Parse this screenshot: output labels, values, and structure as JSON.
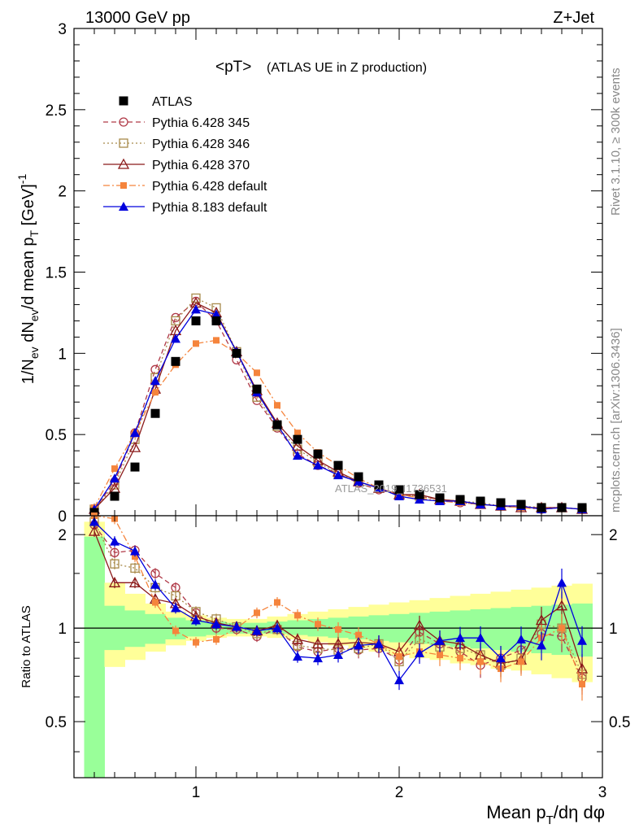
{
  "header": {
    "left": "13000 GeV pp",
    "right": "Z+Jet"
  },
  "side_labels": {
    "upper": "Rivet 3.1.10, ≥ 300k events",
    "lower": "mcplots.cern.ch [arXiv:1306.3436]"
  },
  "watermark": "ATLAS_2019_I1736531",
  "colors": {
    "ATLAS": "#000000",
    "Pythia 6.428 345": "#b03a48",
    "Pythia 6.428 346": "#a88a4a",
    "Pythia 6.428 370": "#8b1a1a",
    "Pythia 6.428 default": "#f5843c",
    "Pythia 8.183 default": "#0000dd",
    "band_inner": "#99ff99",
    "band_outer": "#ffff99"
  },
  "chart_data": [
    {
      "type": "line",
      "panel": "main",
      "title": "<pT>",
      "subtitle": "(ATLAS UE in Z production)",
      "ylabel": "1/N_ev dN_ev/d mean p_T [GeV]^-1",
      "xlabel": "",
      "xlim": [
        0.4,
        3.0
      ],
      "ylim": [
        0,
        3
      ],
      "yticks": [
        0,
        0.5,
        1,
        1.5,
        2,
        2.5,
        3
      ],
      "ytick_labels": [
        "0",
        "0.5",
        "1",
        "1.5",
        "2",
        "2.5",
        "3"
      ],
      "x": [
        0.5,
        0.6,
        0.7,
        0.8,
        0.9,
        1.0,
        1.1,
        1.2,
        1.3,
        1.4,
        1.5,
        1.6,
        1.7,
        1.8,
        1.9,
        2.0,
        2.1,
        2.2,
        2.3,
        2.4,
        2.5,
        2.6,
        2.7,
        2.8,
        2.9
      ],
      "series": [
        {
          "name": "ATLAS",
          "marker": "square-filled",
          "line": "none",
          "values": [
            0.02,
            0.12,
            0.3,
            0.63,
            0.95,
            1.2,
            1.2,
            1.0,
            0.78,
            0.56,
            0.47,
            0.38,
            0.31,
            0.24,
            0.19,
            0.16,
            0.13,
            0.11,
            0.1,
            0.09,
            0.08,
            0.07,
            0.05,
            0.05,
            0.05
          ]
        },
        {
          "name": "Pythia 6.428 345",
          "marker": "circle-open",
          "line": "dashed",
          "values": [
            0.04,
            0.21,
            0.51,
            0.9,
            1.22,
            1.32,
            1.2,
            0.96,
            0.71,
            0.54,
            0.38,
            0.31,
            0.26,
            0.2,
            0.16,
            0.13,
            0.12,
            0.1,
            0.08,
            0.07,
            0.06,
            0.06,
            0.04,
            0.05,
            0.04
          ]
        },
        {
          "name": "Pythia 6.428 346",
          "marker": "square-open",
          "line": "dotted",
          "values": [
            0.04,
            0.19,
            0.47,
            0.85,
            1.2,
            1.34,
            1.28,
            1.01,
            0.73,
            0.55,
            0.41,
            0.33,
            0.26,
            0.21,
            0.17,
            0.13,
            0.12,
            0.1,
            0.09,
            0.08,
            0.06,
            0.06,
            0.05,
            0.05,
            0.04
          ]
        },
        {
          "name": "Pythia 6.428 370",
          "marker": "triangle-open",
          "line": "solid",
          "values": [
            0.04,
            0.17,
            0.42,
            0.78,
            1.14,
            1.31,
            1.25,
            1.01,
            0.77,
            0.57,
            0.43,
            0.34,
            0.27,
            0.21,
            0.17,
            0.13,
            0.13,
            0.1,
            0.09,
            0.07,
            0.06,
            0.05,
            0.05,
            0.05,
            0.04
          ]
        },
        {
          "name": "Pythia 6.428 default",
          "marker": "square-filled-small",
          "line": "dashdot",
          "values": [
            0.05,
            0.29,
            0.51,
            0.76,
            0.93,
            1.06,
            1.08,
            1.0,
            0.88,
            0.68,
            0.51,
            0.39,
            0.31,
            0.23,
            0.17,
            0.13,
            0.11,
            0.09,
            0.08,
            0.07,
            0.06,
            0.05,
            0.04,
            0.05,
            0.04
          ]
        },
        {
          "name": "Pythia 8.183 default",
          "marker": "triangle-filled",
          "line": "solid",
          "values": [
            0.04,
            0.23,
            0.51,
            0.83,
            1.09,
            1.27,
            1.24,
            1.01,
            0.76,
            0.56,
            0.37,
            0.31,
            0.25,
            0.21,
            0.17,
            0.12,
            0.1,
            0.09,
            0.09,
            0.07,
            0.06,
            0.06,
            0.04,
            0.05,
            0.04
          ]
        }
      ]
    },
    {
      "type": "line",
      "panel": "ratio",
      "ylabel": "Ratio to ATLAS",
      "xlabel": "Mean p_T/dη dφ",
      "xlim": [
        0.4,
        3.0
      ],
      "ylim": [
        0.33,
        2.3
      ],
      "yticks": [
        0.5,
        1,
        2
      ],
      "ytick_labels": [
        "0.5",
        "1",
        "2"
      ],
      "xticks": [
        1,
        2,
        3
      ],
      "xtick_labels": [
        "1",
        "2",
        "3"
      ],
      "x": [
        0.5,
        0.6,
        0.7,
        0.8,
        0.9,
        1.0,
        1.1,
        1.2,
        1.3,
        1.4,
        1.5,
        1.6,
        1.7,
        1.8,
        1.9,
        2.0,
        2.1,
        2.2,
        2.3,
        2.4,
        2.5,
        2.6,
        2.7,
        2.8,
        2.9
      ],
      "reference": 1,
      "band_inner": {
        "low": [
          0.33,
          0.85,
          0.87,
          0.89,
          0.92,
          0.94,
          0.95,
          0.96,
          0.96,
          0.96,
          0.95,
          0.94,
          0.93,
          0.92,
          0.91,
          0.9,
          0.89,
          0.88,
          0.87,
          0.86,
          0.85,
          0.84,
          0.83,
          0.82,
          0.81
        ],
        "high": [
          1.97,
          1.18,
          1.14,
          1.11,
          1.08,
          1.06,
          1.05,
          1.04,
          1.04,
          1.05,
          1.06,
          1.07,
          1.08,
          1.09,
          1.1,
          1.11,
          1.12,
          1.13,
          1.14,
          1.15,
          1.16,
          1.17,
          1.18,
          1.19,
          1.2
        ]
      },
      "band_outer": {
        "low": [
          0.33,
          0.75,
          0.79,
          0.84,
          0.88,
          0.91,
          0.93,
          0.94,
          0.94,
          0.93,
          0.92,
          0.9,
          0.88,
          0.86,
          0.84,
          0.82,
          0.8,
          0.79,
          0.77,
          0.76,
          0.74,
          0.73,
          0.71,
          0.69,
          0.67
        ],
        "high": [
          2.2,
          1.4,
          1.29,
          1.2,
          1.13,
          1.1,
          1.08,
          1.07,
          1.07,
          1.09,
          1.11,
          1.13,
          1.15,
          1.17,
          1.19,
          1.21,
          1.23,
          1.25,
          1.27,
          1.29,
          1.31,
          1.33,
          1.35,
          1.37,
          1.39
        ]
      },
      "series": [
        {
          "name": "Pythia 6.428 345",
          "values": [
            2.15,
            1.75,
            1.78,
            1.5,
            1.35,
            1.12,
            1.0,
            0.99,
            0.94,
            0.99,
            0.87,
            0.84,
            0.86,
            0.85,
            0.86,
            0.79,
            0.97,
            0.89,
            0.84,
            0.76,
            0.8,
            0.85,
            0.96,
            0.94,
            0.69
          ]
        },
        {
          "name": "Pythia 6.428 346",
          "values": [
            2.2,
            1.61,
            1.56,
            1.35,
            1.27,
            1.13,
            1.07,
            1.01,
            0.96,
            0.99,
            0.88,
            0.86,
            0.85,
            0.86,
            0.89,
            0.78,
            0.92,
            0.87,
            0.86,
            0.82,
            0.76,
            0.8,
            1.03,
            1.0,
            0.71
          ]
        },
        {
          "name": "Pythia 6.428 370",
          "values": [
            2.05,
            1.4,
            1.4,
            1.24,
            1.2,
            1.09,
            1.04,
            1.01,
            0.98,
            1.02,
            0.92,
            0.89,
            0.89,
            0.9,
            0.89,
            0.84,
            1.02,
            0.91,
            0.89,
            0.82,
            0.77,
            0.79,
            1.06,
            1.18,
            0.74
          ]
        },
        {
          "name": "Pythia 6.428 default",
          "values": [
            2.35,
            2.25,
            1.7,
            1.21,
            0.98,
            0.9,
            0.92,
            1.0,
            1.12,
            1.21,
            1.1,
            1.03,
            0.99,
            0.95,
            0.89,
            0.81,
            0.84,
            0.82,
            0.8,
            0.78,
            0.74,
            0.78,
            0.93,
            1.0,
            0.66
          ]
        },
        {
          "name": "Pythia 8.183 default",
          "values": [
            2.2,
            1.9,
            1.77,
            1.38,
            1.16,
            1.06,
            1.03,
            1.01,
            0.98,
            1.0,
            0.81,
            0.8,
            0.82,
            0.88,
            0.89,
            0.68,
            0.83,
            0.91,
            0.93,
            0.93,
            0.8,
            0.92,
            0.88,
            1.4,
            0.91
          ]
        }
      ]
    }
  ]
}
